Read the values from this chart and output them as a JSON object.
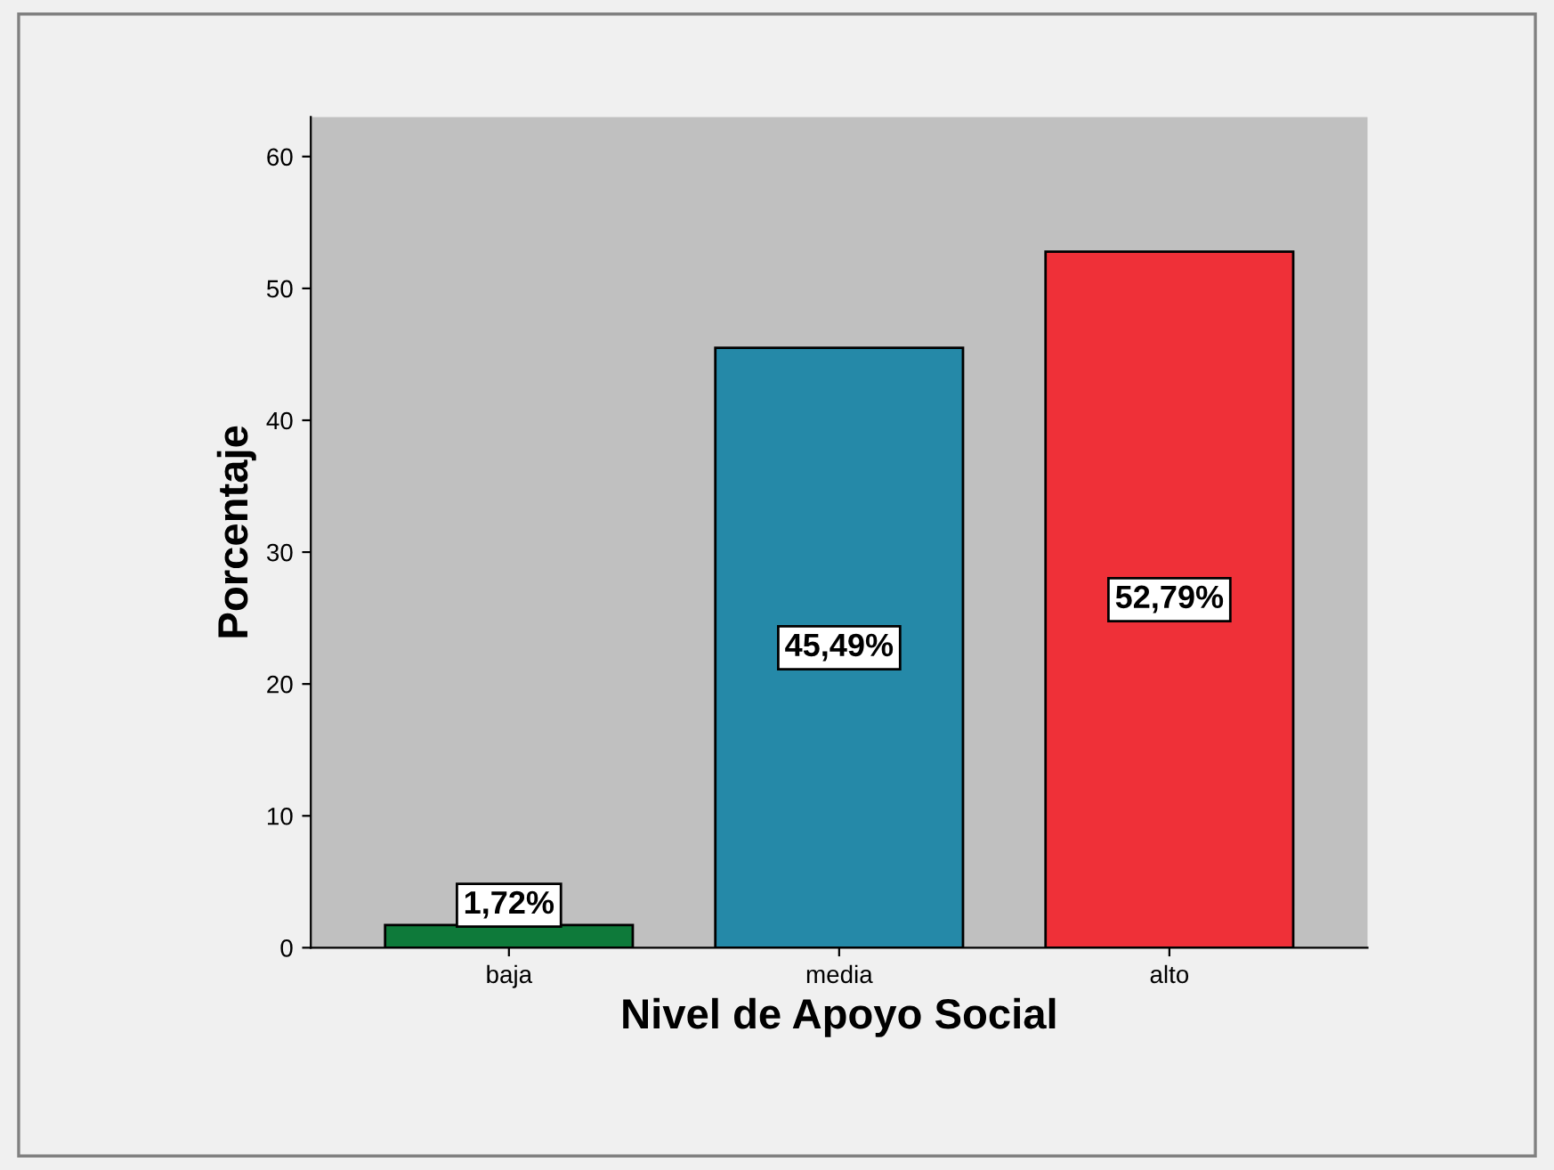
{
  "chart_data": {
    "type": "bar",
    "xlabel": "Nivel de Apoyo Social",
    "ylabel": "Porcentaje",
    "categories": [
      "baja",
      "media",
      "alto"
    ],
    "values": [
      1.72,
      45.49,
      52.79
    ],
    "colors": [
      "#0e7a3a",
      "#2589a8",
      "#ef3038"
    ],
    "value_labels": [
      "1,72%",
      "45,49%",
      "52,79%"
    ],
    "ylim": [
      0,
      63
    ],
    "yticks": [
      0,
      10,
      20,
      30,
      40,
      50,
      60
    ],
    "grid": false,
    "legend": false
  }
}
